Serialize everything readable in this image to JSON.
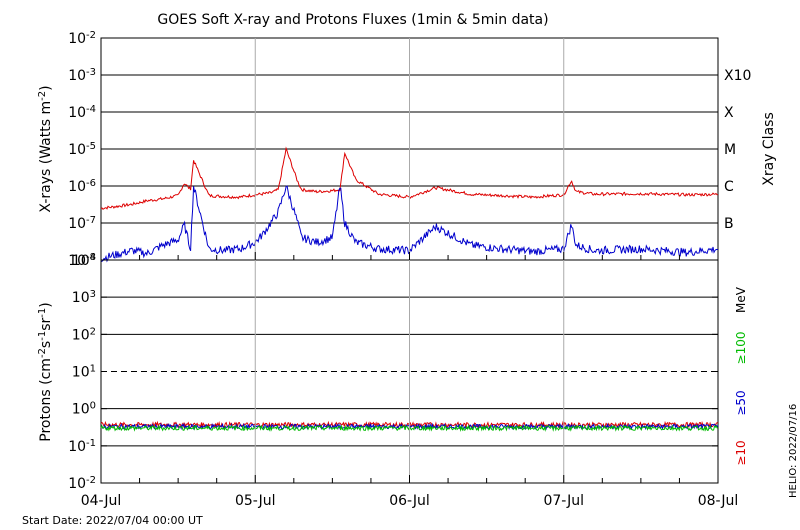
{
  "title": "GOES Soft X-ray and Protons Fluxes   (1min & 5min data)",
  "start_date": "Start Date: 2022/07/04 00:00 UT",
  "footer_right": "HELIO: 2022/07/16",
  "chart_data": [
    {
      "type": "line",
      "panel": "xray",
      "ylabel_main": "X-rays (Watts m",
      "ylabel_exp": "-2",
      "ylabel_close": ")",
      "yscale": "log",
      "ylim": [
        1e-08,
        0.01
      ],
      "ytick_exponents": [
        "-2",
        "-3",
        "-4",
        "-5",
        "-6",
        "-7",
        "-8"
      ],
      "gridlines_at": [
        0.001,
        0.0001,
        1e-05,
        1e-06,
        1e-07
      ],
      "right_axis_label": "Xray Class",
      "class_labels": [
        {
          "label": "X10",
          "value": 0.001
        },
        {
          "label": "X",
          "value": 0.0001
        },
        {
          "label": "M",
          "value": 1e-05
        },
        {
          "label": "C",
          "value": 1e-06
        },
        {
          "label": "B",
          "value": 1e-07
        }
      ],
      "series": [
        {
          "color": "#dd0000",
          "values_day": [
            0,
            0.1,
            0.2,
            0.3,
            0.4,
            0.5,
            0.54,
            0.58,
            0.6,
            0.7,
            0.8,
            0.9,
            1.0,
            1.1,
            1.15,
            1.2,
            1.27,
            1.3,
            1.4,
            1.5,
            1.55,
            1.58,
            1.65,
            1.8,
            2.0,
            2.17,
            2.4,
            2.6,
            2.8,
            3.0,
            3.05,
            3.08,
            3.2,
            3.5,
            3.8,
            4.0
          ],
          "values": [
            2.5e-07,
            2.8e-07,
            3.2e-07,
            4e-07,
            4.5e-07,
            5.5e-07,
            1.2e-06,
            8e-07,
            5e-06,
            5.5e-07,
            5.2e-07,
            5e-07,
            5.8e-07,
            6.5e-07,
            8e-07,
            1e-05,
            1.5e-06,
            8e-07,
            7e-07,
            7.5e-07,
            8e-07,
            8e-06,
            1.5e-06,
            6e-07,
            5e-07,
            9e-07,
            6e-07,
            5.5e-07,
            5e-07,
            5.8e-07,
            1.4e-06,
            7e-07,
            6e-07,
            6.2e-07,
            5.8e-07,
            6e-07
          ]
        },
        {
          "color": "#0000cc",
          "values_day": [
            0,
            0.1,
            0.2,
            0.3,
            0.4,
            0.5,
            0.54,
            0.58,
            0.6,
            0.7,
            0.8,
            0.9,
            1.0,
            1.05,
            1.1,
            1.15,
            1.2,
            1.27,
            1.3,
            1.4,
            1.5,
            1.55,
            1.58,
            1.65,
            1.8,
            2.0,
            2.17,
            2.4,
            2.6,
            2.8,
            3.0,
            3.05,
            3.08,
            3.2,
            3.5,
            3.8,
            4.0
          ],
          "values": [
            1.1e-08,
            1.4e-08,
            1.8e-08,
            1.5e-08,
            2.5e-08,
            3.5e-08,
            9e-08,
            2e-08,
            1e-06,
            2e-08,
            1.8e-08,
            2e-08,
            3e-08,
            5e-08,
            1e-07,
            2e-07,
            1e-06,
            1.2e-07,
            4e-08,
            3e-08,
            4e-08,
            1e-06,
            1e-07,
            3e-08,
            2e-08,
            1.8e-08,
            8e-08,
            2.5e-08,
            2e-08,
            1.7e-08,
            2e-08,
            9e-08,
            2.5e-08,
            1.8e-08,
            2e-08,
            1.6e-08,
            2e-08
          ]
        }
      ]
    },
    {
      "type": "line",
      "panel": "protons",
      "ylabel_main": "Protons (cm",
      "ylabel_sup1": "-2",
      "ylabel_mid1": "s",
      "ylabel_sup2": "-1",
      "ylabel_mid2": "sr",
      "ylabel_sup3": "-1",
      "ylabel_close": ")",
      "yscale": "log",
      "ylim": [
        0.01,
        10000.0
      ],
      "ytick_exponents": [
        "4",
        "3",
        "2",
        "1",
        "0",
        "-1",
        "-2"
      ],
      "gridlines_at": [
        1000.0,
        100.0,
        1.0,
        0.1
      ],
      "dashed_line_at": 10,
      "right_labels": [
        {
          "label": "MeV",
          "color": "#000000"
        },
        {
          "label": "≥100",
          "color": "#00bb00"
        },
        {
          "label": "≥50",
          "color": "#0000cc"
        },
        {
          "label": "≥10",
          "color": "#dd0000"
        }
      ],
      "series": [
        {
          "name": "≥10",
          "color": "#dd0000",
          "level": 0.37
        },
        {
          "name": "≥50",
          "color": "#0000cc",
          "level": 0.33
        },
        {
          "name": "≥100",
          "color": "#00bb00",
          "level": 0.3
        }
      ]
    }
  ],
  "x_axis": {
    "categories": [
      "04-Jul",
      "05-Jul",
      "06-Jul",
      "07-Jul",
      "08-Jul"
    ],
    "range_days": [
      0,
      4
    ]
  }
}
